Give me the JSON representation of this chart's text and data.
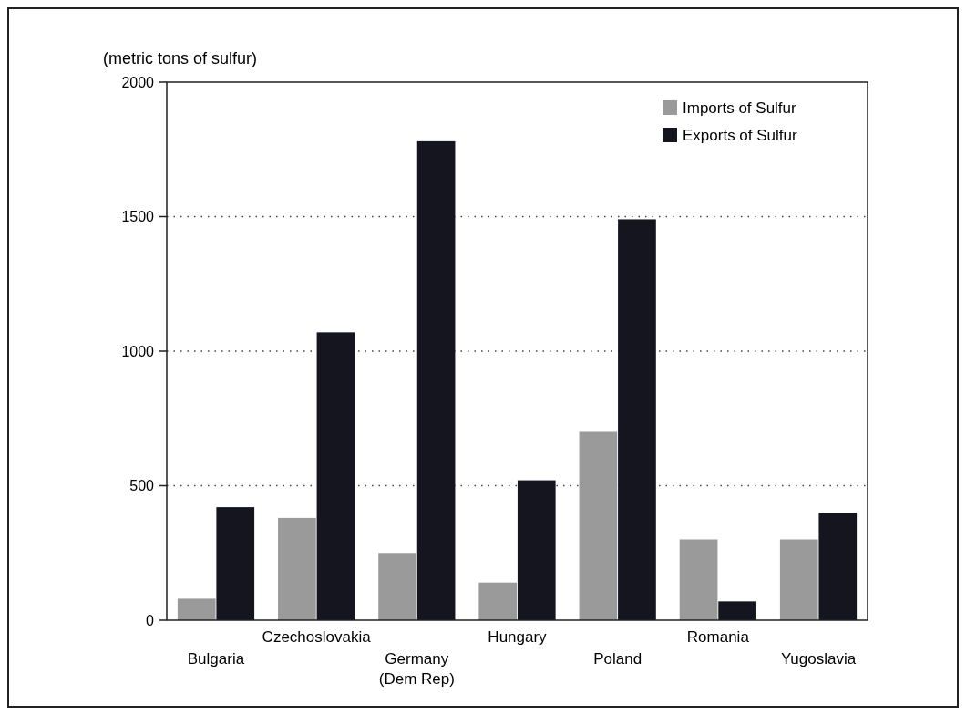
{
  "chart_data": {
    "type": "bar",
    "ylabel": "(metric tons of sulfur)",
    "categories": [
      "Bulgaria",
      "Czechoslovakia",
      "Germany\n(Dem Rep)",
      "Hungary",
      "Poland",
      "Romania",
      "Yugoslavia"
    ],
    "series": [
      {
        "name": "Imports of Sulfur",
        "color": "#9a9a9a",
        "values": [
          80,
          380,
          250,
          140,
          700,
          300,
          300
        ]
      },
      {
        "name": "Exports of Sulfur",
        "color": "#151520",
        "values": [
          420,
          1070,
          1780,
          520,
          1490,
          70,
          400
        ]
      }
    ],
    "ylim": [
      0,
      2000
    ],
    "yticks": [
      0,
      500,
      1000,
      1500,
      2000
    ],
    "grid": "y",
    "legend": "top right"
  }
}
